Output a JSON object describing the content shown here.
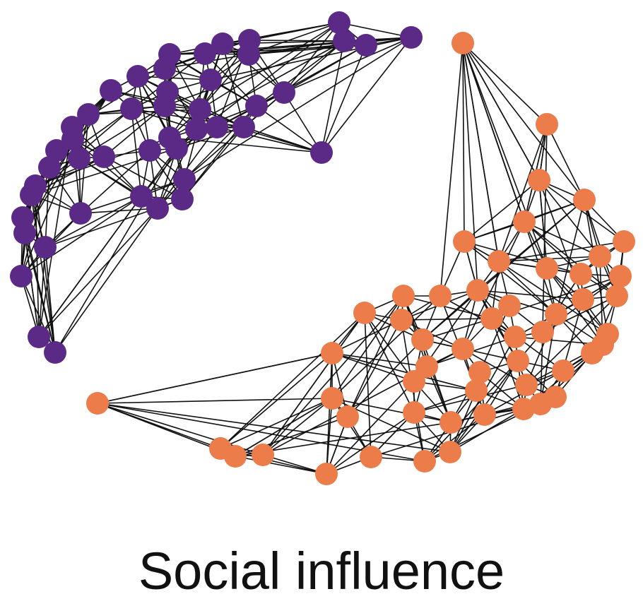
{
  "caption": "Social influence",
  "colors": {
    "group_a": "#5b2a86",
    "group_b": "#ec7c4a",
    "edge": "#111111",
    "background": "#ffffff"
  }
}
